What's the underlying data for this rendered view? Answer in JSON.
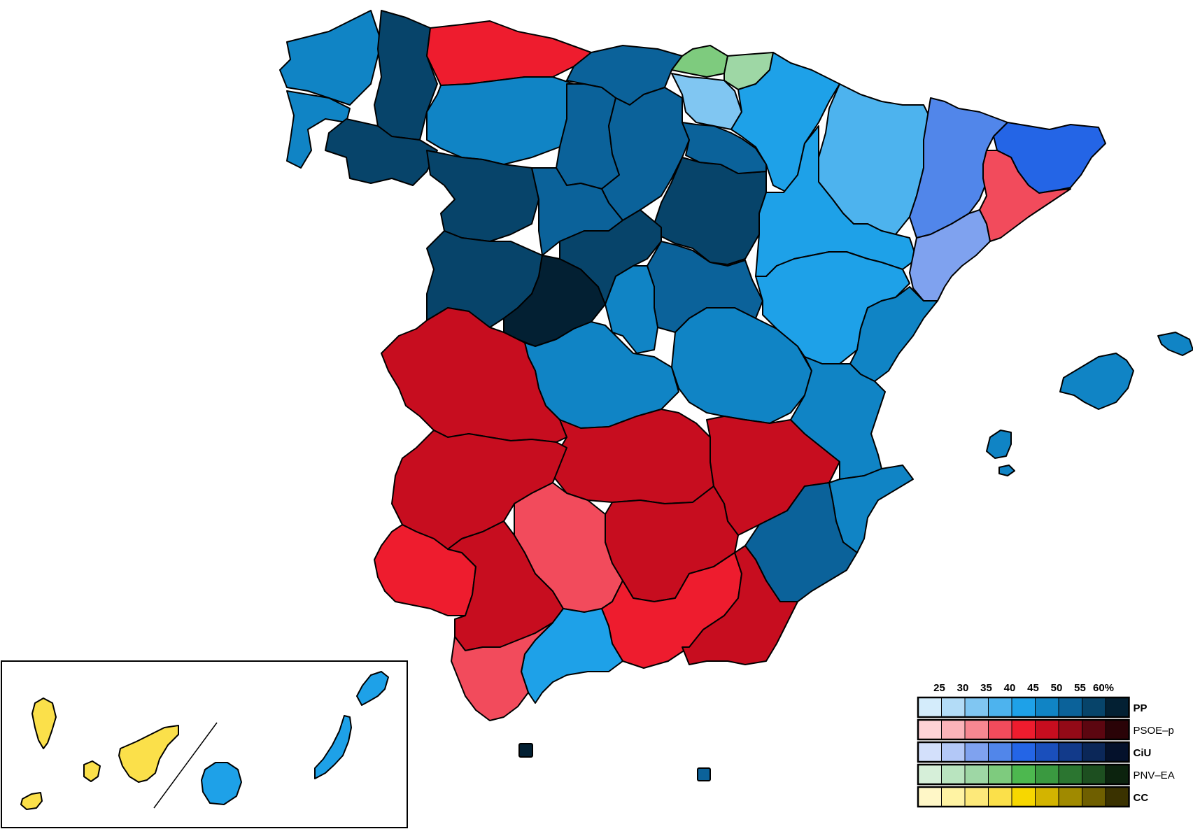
{
  "legend": {
    "ticks": [
      "25",
      "30",
      "35",
      "40",
      "45",
      "50",
      "55",
      "60%"
    ],
    "parties": [
      {
        "name": "PP",
        "bold": true,
        "colors": [
          "#d4ecfb",
          "#b3dcf7",
          "#80c6f2",
          "#4db3ee",
          "#1ea1e8",
          "#1084c5",
          "#0b629a",
          "#07446a",
          "#032033"
        ]
      },
      {
        "name": "PSOE–p",
        "bold": false,
        "colors": [
          "#fdd2d6",
          "#fbb3b9",
          "#f78791",
          "#f24b5c",
          "#ee1c2e",
          "#c70d1f",
          "#930a17",
          "#5c0610",
          "#2a0307"
        ]
      },
      {
        "name": "CiU",
        "bold": true,
        "colors": [
          "#d3e0fb",
          "#b3c8f7",
          "#7fa2ef",
          "#5186ea",
          "#2465e6",
          "#1a4fbc",
          "#123a8a",
          "#0b2758",
          "#04112b"
        ]
      },
      {
        "name": "PNV–EA",
        "bold": false,
        "colors": [
          "#d6efd9",
          "#b9e4bf",
          "#9ed7a5",
          "#7ecb7e",
          "#4db84f",
          "#3a9940",
          "#2b7530",
          "#1d4f20",
          "#0c230e"
        ]
      },
      {
        "name": "CC",
        "bold": true,
        "colors": [
          "#fff7c7",
          "#fff3a3",
          "#fde97a",
          "#fbe04a",
          "#f7d700",
          "#d3b400",
          "#a08a00",
          "#6f5f00",
          "#3a3200"
        ]
      }
    ]
  },
  "colors": {
    "pp_lightest": "#80c6f2",
    "pp_light": "#4db3ee",
    "pp_mid": "#1ea1e8",
    "pp_base": "#1084c5",
    "pp_dark": "#0b629a",
    "pp_darker": "#07446a",
    "pp_darkest": "#032033",
    "psoe_light": "#f24b5c",
    "psoe_mid": "#ee1c2e",
    "psoe_base": "#c70d1f",
    "ciu_light": "#7fa2ef",
    "ciu_mid": "#5186ea",
    "ciu_base": "#2465e6",
    "pnv_mid": "#7ecb7e",
    "pnv_light": "#9ed7a5",
    "cc_mid": "#fbe04a"
  }
}
